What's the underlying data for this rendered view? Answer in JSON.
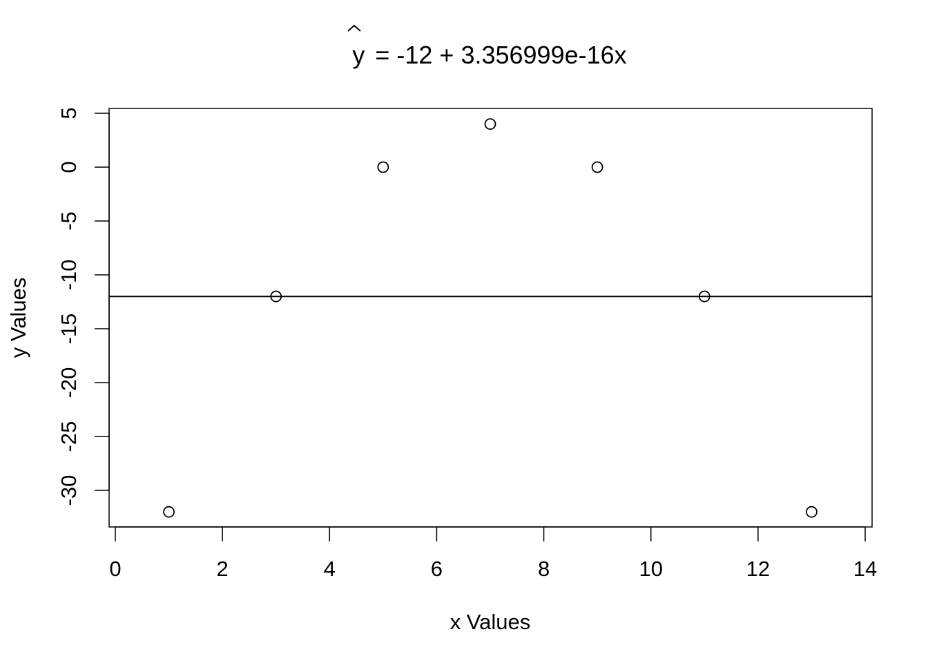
{
  "chart_data": {
    "type": "scatter",
    "title": "= -12 + 3.356999e-16x",
    "title_symbol": "y",
    "xlabel": "x Values",
    "ylabel": "y Values",
    "xlim": [
      0,
      14
    ],
    "ylim": [
      -32,
      4
    ],
    "xticks": [
      0,
      2,
      4,
      6,
      8,
      10,
      12,
      14
    ],
    "yticks": [
      5,
      0,
      -5,
      -10,
      -15,
      -20,
      -25,
      -30
    ],
    "grid": false,
    "legend": "none",
    "series": [
      {
        "points": [
          {
            "x": 1,
            "y": -32
          },
          {
            "x": 3,
            "y": -12
          },
          {
            "x": 5,
            "y": 0
          },
          {
            "x": 7,
            "y": 4
          },
          {
            "x": 9,
            "y": 0
          },
          {
            "x": 11,
            "y": -12
          },
          {
            "x": 13,
            "y": -32
          }
        ]
      }
    ],
    "regression_line": {
      "intercept": -12,
      "slope": 3.356999e-16
    }
  }
}
